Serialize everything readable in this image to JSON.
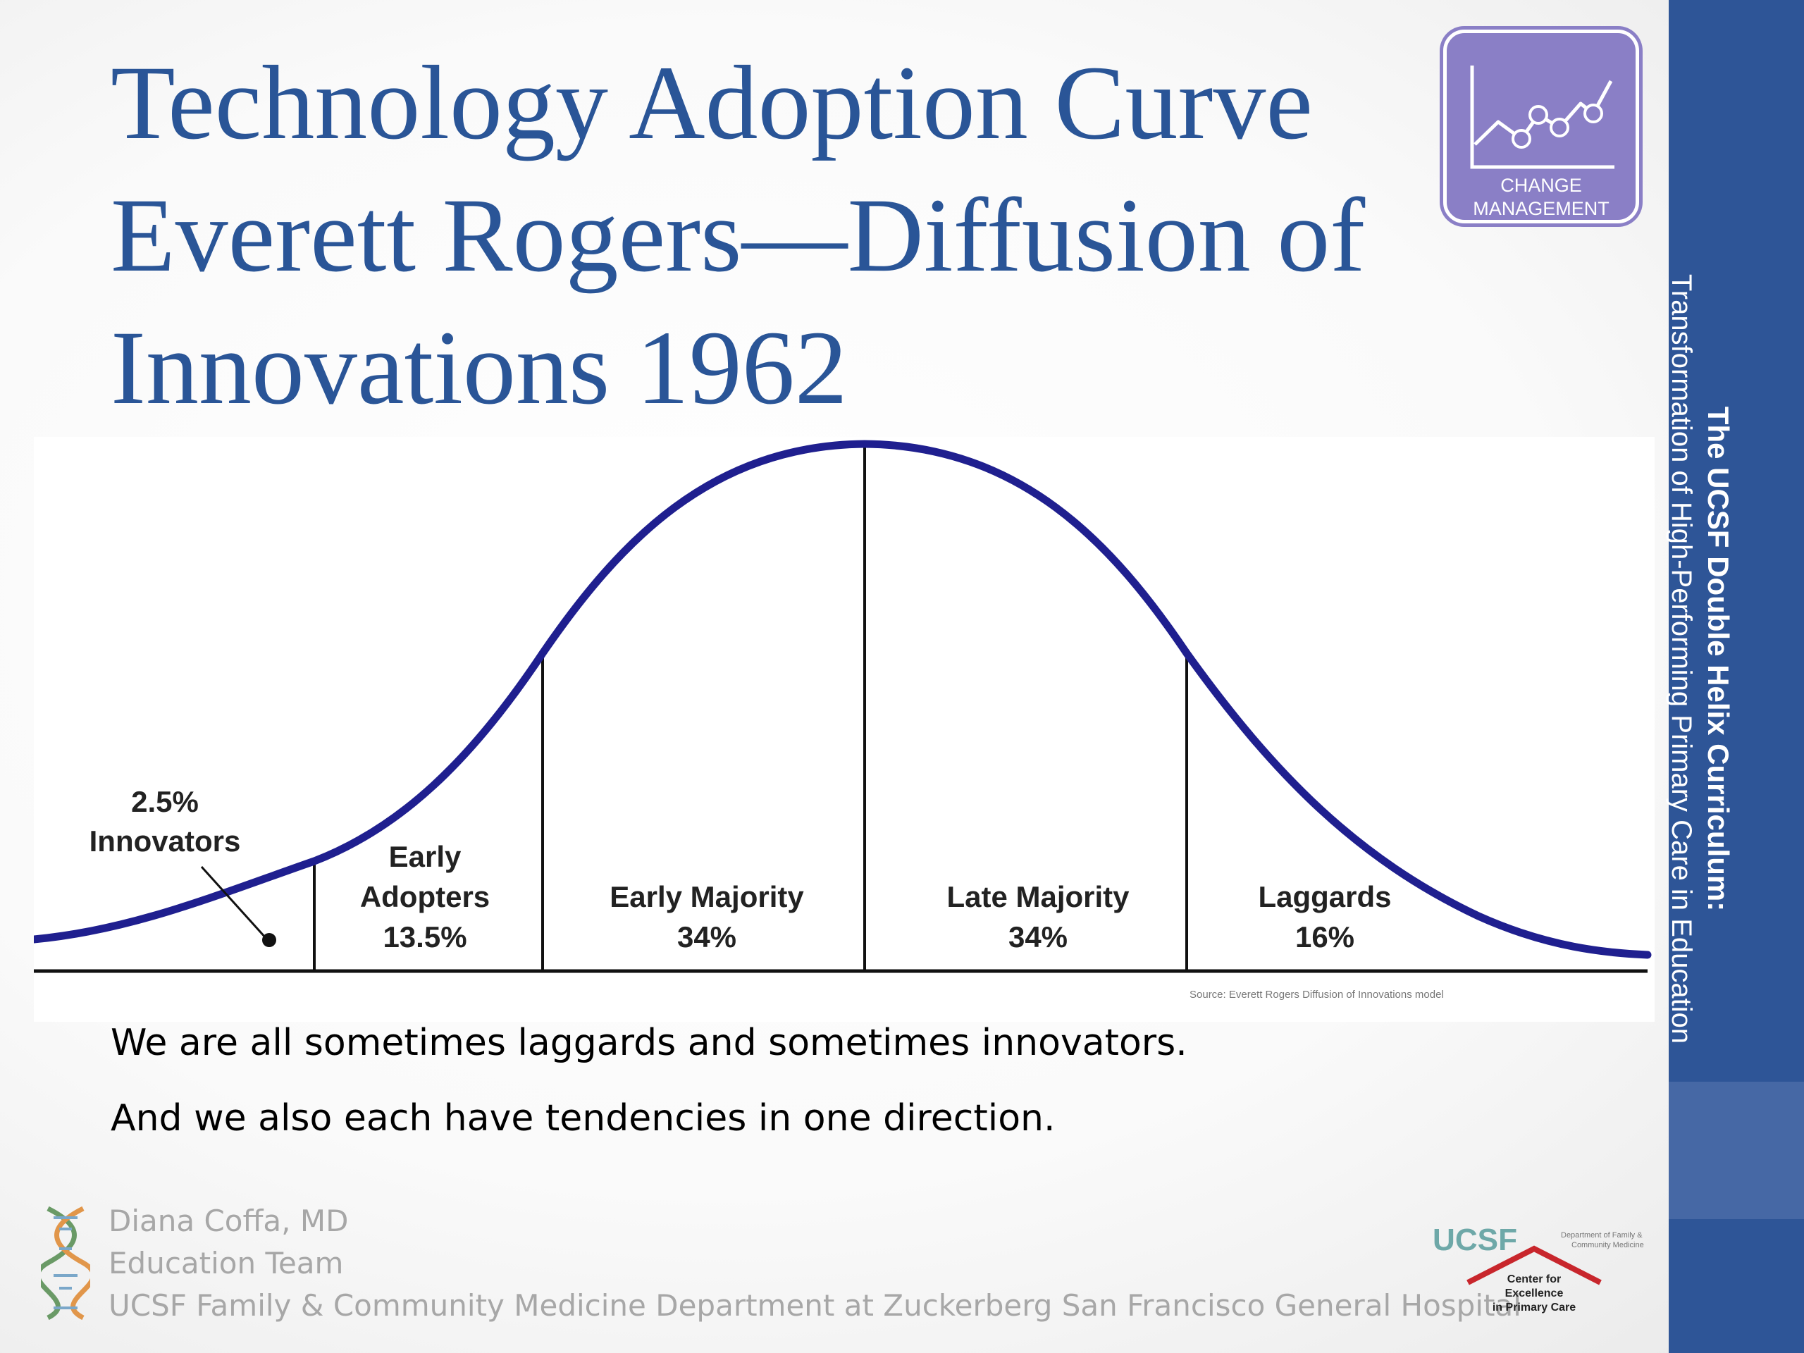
{
  "title": {
    "line1": "Technology Adoption Curve",
    "line2": "Everett Rogers—Diffusion of",
    "line3": "Innovations 1962"
  },
  "badge": {
    "icon": "line-chart-icon",
    "line1": "CHANGE",
    "line2": "MANAGEMENT",
    "color": "#8a7fc6"
  },
  "sidebar": {
    "line1": "The UCSF Double Helix Curriculum:",
    "line2": "Transformation of High-Performing Primary Care in Education",
    "color": "#2e5597"
  },
  "diagram": {
    "curve_color": "#1f1f8f",
    "segments": [
      {
        "percent": "2.5%",
        "label": "Innovators"
      },
      {
        "label1": "Early",
        "label2": "Adopters",
        "percent": "13.5%"
      },
      {
        "label": "Early Majority",
        "percent": "34%"
      },
      {
        "label": "Late Majority",
        "percent": "34%"
      },
      {
        "label": "Laggards",
        "percent": "16%"
      }
    ],
    "source": "Source: Everett Rogers Diffusion of Innovations model"
  },
  "body": {
    "line1": "We are all sometimes laggards and sometimes innovators.",
    "line2": "And we also each have tendencies in one direction."
  },
  "footer": {
    "author": "Diana Coffa, MD",
    "team": "Education Team",
    "department": "UCSF Family & Community Medicine Department at Zuckerberg San Francisco General Hospital"
  },
  "logo": {
    "ucsf": "UCSF",
    "dept_line1": "Department of Family &",
    "dept_line2": "Community Medicine",
    "center_line1": "Center for",
    "center_line2": "Excellence",
    "center_line3": "in Primary Care"
  }
}
